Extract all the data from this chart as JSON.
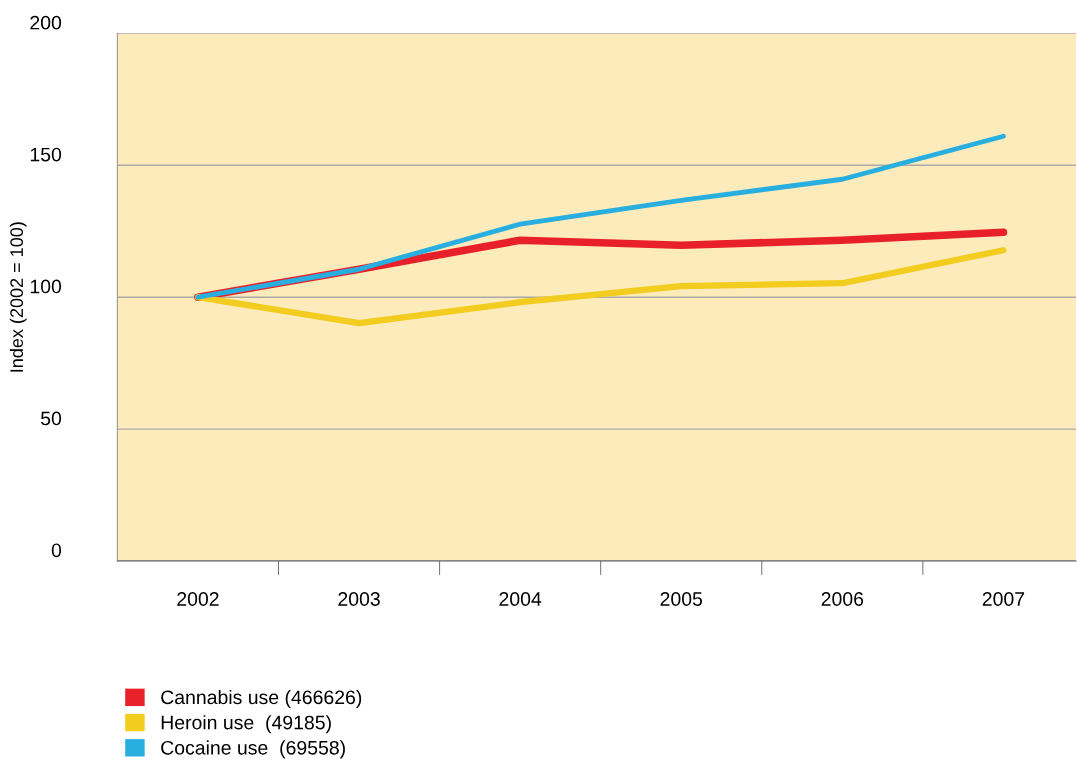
{
  "chart_data": {
    "type": "line",
    "ylabel": "Index (2002 = 100)",
    "categories": [
      "2002",
      "2003",
      "2004",
      "2005",
      "2006",
      "2007"
    ],
    "series": [
      {
        "name": "Cannabis use (466626)",
        "color": "#e8202a",
        "values": [
          100,
          110.6,
          121.6,
          119.7,
          121.6,
          124.6
        ]
      },
      {
        "name": "Heroin use  (49185)",
        "color": "#f2cc1f",
        "values": [
          100,
          90.2,
          98.1,
          104.2,
          105.3,
          117.8
        ]
      },
      {
        "name": "Cocaine use  (69558)",
        "color": "#29aee0",
        "values": [
          100,
          110.6,
          127.7,
          136.7,
          144.7,
          161
        ]
      }
    ],
    "ylim": [
      0,
      200
    ],
    "yticks": [
      0,
      50,
      100,
      150,
      200
    ],
    "grid": "y",
    "legend": "bottom left",
    "marker": "none",
    "line_style": "solid"
  }
}
